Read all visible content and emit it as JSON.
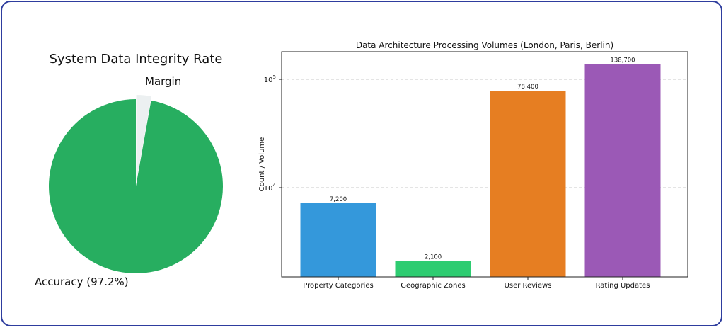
{
  "chart_data": [
    {
      "type": "pie",
      "title": "System Data Integrity Rate",
      "slices": [
        {
          "label": "Accuracy (97.2%)",
          "value": 97.2,
          "color": "#27ae60"
        },
        {
          "label": "Margin",
          "value": 2.8,
          "color": "#ecf0f1"
        }
      ]
    },
    {
      "type": "bar",
      "title": "Data Architecture Processing Volumes (London, Paris, Berlin)",
      "xlabel": "",
      "ylabel": "Count / Volume",
      "yscale": "log",
      "ylim": [
        1500,
        180000
      ],
      "grid": "y-dashed",
      "categories": [
        "Property Categories",
        "Geographic Zones",
        "User Reviews",
        "Rating Updates"
      ],
      "values": [
        7200,
        2100,
        78400,
        138700
      ],
      "value_labels": [
        "7,200",
        "2,100",
        "78,400",
        "138,700"
      ],
      "colors": [
        "#3498db",
        "#2ecc71",
        "#e67e22",
        "#9b59b6"
      ],
      "yticks": [
        {
          "base": "10",
          "exp": "4",
          "value": 10000
        },
        {
          "base": "10",
          "exp": "5",
          "value": 100000
        }
      ]
    }
  ]
}
